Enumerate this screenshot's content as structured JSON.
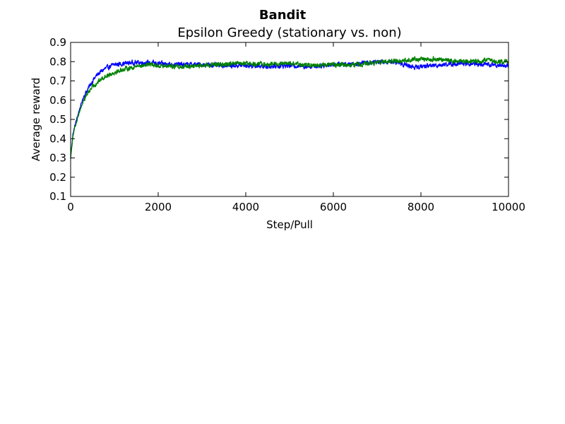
{
  "chart_data": {
    "type": "line",
    "suptitle": "Bandit",
    "title": "Epsilon Greedy (stationary vs. non)",
    "xlabel": "Step/Pull",
    "ylabel": "Average reward",
    "xlim": [
      0,
      10000
    ],
    "ylim": [
      0.1,
      0.9
    ],
    "xticks": [
      0,
      2000,
      4000,
      6000,
      8000,
      10000
    ],
    "yticks": [
      0.1,
      0.2,
      0.3,
      0.4,
      0.5,
      0.6,
      0.7,
      0.8,
      0.9
    ],
    "xtick_labels": [
      "0",
      "2000",
      "4000",
      "6000",
      "8000",
      "10000"
    ],
    "ytick_labels": [
      "0.1",
      "0.2",
      "0.3",
      "0.4",
      "0.5",
      "0.6",
      "0.7",
      "0.8",
      "0.9"
    ],
    "grid": false,
    "series": [
      {
        "color": "#0000ff",
        "x": [
          0,
          50,
          100,
          200,
          300,
          400,
          500,
          600,
          700,
          800,
          900,
          1000,
          1200,
          1400,
          1600,
          1800,
          2000,
          2500,
          3000,
          3500,
          4000,
          4500,
          5000,
          5500,
          6000,
          6500,
          7000,
          7500,
          7700,
          7900,
          8000,
          8500,
          9000,
          9500,
          10000
        ],
        "values": [
          0.3,
          0.42,
          0.47,
          0.55,
          0.62,
          0.66,
          0.7,
          0.73,
          0.75,
          0.765,
          0.775,
          0.785,
          0.79,
          0.795,
          0.795,
          0.795,
          0.79,
          0.785,
          0.785,
          0.78,
          0.78,
          0.775,
          0.78,
          0.775,
          0.785,
          0.79,
          0.8,
          0.795,
          0.78,
          0.77,
          0.775,
          0.785,
          0.79,
          0.785,
          0.78
        ]
      },
      {
        "color": "#008000",
        "x": [
          0,
          50,
          100,
          200,
          300,
          400,
          500,
          600,
          700,
          800,
          900,
          1000,
          1200,
          1400,
          1600,
          1800,
          2000,
          2500,
          3000,
          3500,
          4000,
          4500,
          5000,
          5500,
          6000,
          6500,
          7000,
          7500,
          8000,
          8500,
          9000,
          9500,
          10000
        ],
        "values": [
          0.3,
          0.41,
          0.46,
          0.54,
          0.6,
          0.64,
          0.67,
          0.69,
          0.71,
          0.725,
          0.735,
          0.745,
          0.76,
          0.77,
          0.78,
          0.785,
          0.78,
          0.775,
          0.78,
          0.785,
          0.79,
          0.785,
          0.79,
          0.78,
          0.785,
          0.785,
          0.795,
          0.805,
          0.815,
          0.81,
          0.8,
          0.805,
          0.8
        ]
      }
    ]
  }
}
